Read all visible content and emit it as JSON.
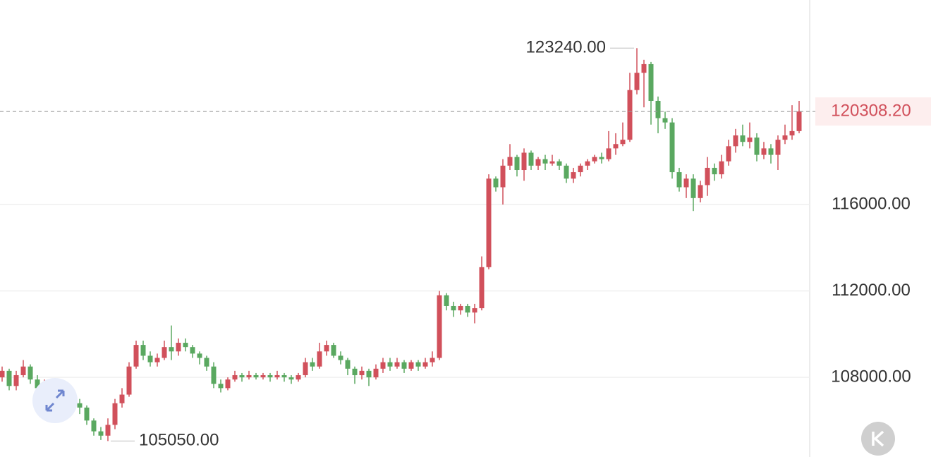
{
  "chart_data": {
    "type": "candlestick",
    "up_color": "#d1505b",
    "down_color": "#5aa860",
    "grid": true,
    "ylim": [
      104312,
      125469
    ],
    "yticks": [
      {
        "value": 108000,
        "label": "108000.00"
      },
      {
        "value": 112000,
        "label": "112000.00"
      },
      {
        "value": 116000,
        "label": "116000.00"
      }
    ],
    "max_label": {
      "value": 123240,
      "label": "123240.00"
    },
    "min_label": {
      "value": 105050,
      "label": "105050.00"
    },
    "last_price": {
      "value": 120308.2,
      "label": "120308.20"
    },
    "open": [
      108000,
      108300,
      107600,
      108100,
      108500,
      107900,
      107500,
      107700,
      107600,
      107200,
      107400,
      106800,
      106600,
      106000,
      105500,
      105300,
      105800,
      106800,
      107200,
      108500,
      109500,
      109000,
      108700,
      108900,
      109400,
      109200,
      109600,
      109400,
      109100,
      108900,
      108500,
      107700,
      107500,
      107900,
      108100,
      108000,
      108100,
      108000,
      108100,
      108000,
      108100,
      108000,
      107900,
      108100,
      108700,
      108500,
      109200,
      109500,
      109000,
      108800,
      108400,
      108100,
      108300,
      108000,
      108400,
      108700,
      108500,
      108700,
      108400,
      108700,
      108500,
      108700,
      108900,
      111800,
      111300,
      111100,
      111300,
      111000,
      111200,
      113100,
      117200,
      116800,
      117800,
      118200,
      117600,
      118400,
      117800,
      118100,
      117900,
      118000,
      117800,
      117200,
      117500,
      117800,
      118000,
      118200,
      118100,
      118600,
      118800,
      119000,
      121300,
      122100,
      122500,
      120800,
      120000,
      119800,
      117500,
      116800,
      117200,
      116300,
      116900,
      117700,
      117400,
      118000,
      118700,
      119200,
      118900,
      119100,
      118300,
      118600,
      118300,
      119000,
      119200,
      119400
    ],
    "high": [
      108500,
      108400,
      108300,
      108800,
      108600,
      108100,
      107900,
      107900,
      107800,
      107600,
      107500,
      107000,
      106700,
      106100,
      105700,
      106100,
      107000,
      107500,
      108700,
      109700,
      109700,
      109200,
      109100,
      109700,
      110400,
      109800,
      109800,
      109500,
      109200,
      109000,
      108700,
      107900,
      108000,
      108300,
      108200,
      108300,
      108200,
      108200,
      108200,
      108300,
      108200,
      108100,
      108200,
      108900,
      108900,
      109600,
      109700,
      109600,
      109200,
      108900,
      108500,
      108500,
      108400,
      108600,
      108900,
      108900,
      108900,
      108800,
      108800,
      108800,
      108900,
      109200,
      112000,
      111900,
      111500,
      111400,
      111400,
      111400,
      113600,
      117400,
      117300,
      118100,
      118800,
      118300,
      118600,
      118500,
      118200,
      118300,
      118300,
      118100,
      117900,
      117700,
      117900,
      118100,
      118300,
      118400,
      119400,
      119300,
      119800,
      122100,
      123240,
      122700,
      122600,
      121000,
      120300,
      120000,
      117700,
      117400,
      117400,
      117100,
      118200,
      117900,
      118300,
      119000,
      119500,
      119700,
      119800,
      119300,
      118900,
      118800,
      119200,
      119700,
      120600,
      120800
    ],
    "low": [
      107800,
      107400,
      107400,
      108000,
      107700,
      107300,
      106800,
      107300,
      107000,
      107000,
      106600,
      106300,
      105800,
      105300,
      105100,
      105050,
      105600,
      106600,
      107100,
      108400,
      108800,
      108500,
      108500,
      108800,
      108800,
      109000,
      109200,
      108900,
      108600,
      108300,
      107500,
      107300,
      107400,
      107800,
      107800,
      107900,
      107900,
      107900,
      107800,
      107900,
      107800,
      107700,
      107800,
      108000,
      108300,
      108400,
      109000,
      108900,
      108600,
      108100,
      107700,
      107900,
      107600,
      107900,
      108200,
      108300,
      108400,
      108200,
      108300,
      108300,
      108400,
      108500,
      108800,
      111100,
      110800,
      110900,
      110800,
      110500,
      111100,
      113000,
      116600,
      116000,
      117600,
      117300,
      117100,
      117600,
      117600,
      117600,
      117800,
      117600,
      117000,
      117000,
      117300,
      117600,
      117900,
      117900,
      118000,
      118300,
      118700,
      118900,
      121100,
      120500,
      119700,
      119300,
      119500,
      117200,
      116600,
      116300,
      115700,
      116100,
      116400,
      117100,
      117200,
      117800,
      118400,
      118700,
      118600,
      118000,
      118100,
      117900,
      117600,
      118800,
      119000,
      119300
    ],
    "close": [
      108300,
      107600,
      108100,
      108500,
      107900,
      107500,
      107700,
      107600,
      107200,
      107400,
      106800,
      106600,
      106000,
      105500,
      105300,
      105800,
      106800,
      107200,
      108500,
      109500,
      109000,
      108700,
      108900,
      109400,
      109200,
      109600,
      109400,
      109100,
      108900,
      108500,
      107700,
      107500,
      107900,
      108100,
      108000,
      108100,
      108000,
      108100,
      108000,
      108100,
      108000,
      107900,
      108100,
      108700,
      108500,
      109200,
      109500,
      109000,
      108800,
      108400,
      108100,
      108300,
      108000,
      108400,
      108700,
      108500,
      108700,
      108400,
      108700,
      108500,
      108700,
      108900,
      111800,
      111300,
      111100,
      111300,
      111000,
      111200,
      113100,
      117200,
      116800,
      117800,
      118200,
      117600,
      118400,
      117800,
      118100,
      117900,
      118000,
      117800,
      117200,
      117500,
      117800,
      118000,
      118200,
      118100,
      118600,
      118800,
      119000,
      121300,
      122100,
      122500,
      120800,
      120000,
      119800,
      117500,
      116800,
      117200,
      116300,
      116900,
      117700,
      117400,
      118000,
      118700,
      119200,
      118900,
      119100,
      118300,
      118600,
      118300,
      119000,
      119200,
      119400,
      120308.2
    ]
  }
}
